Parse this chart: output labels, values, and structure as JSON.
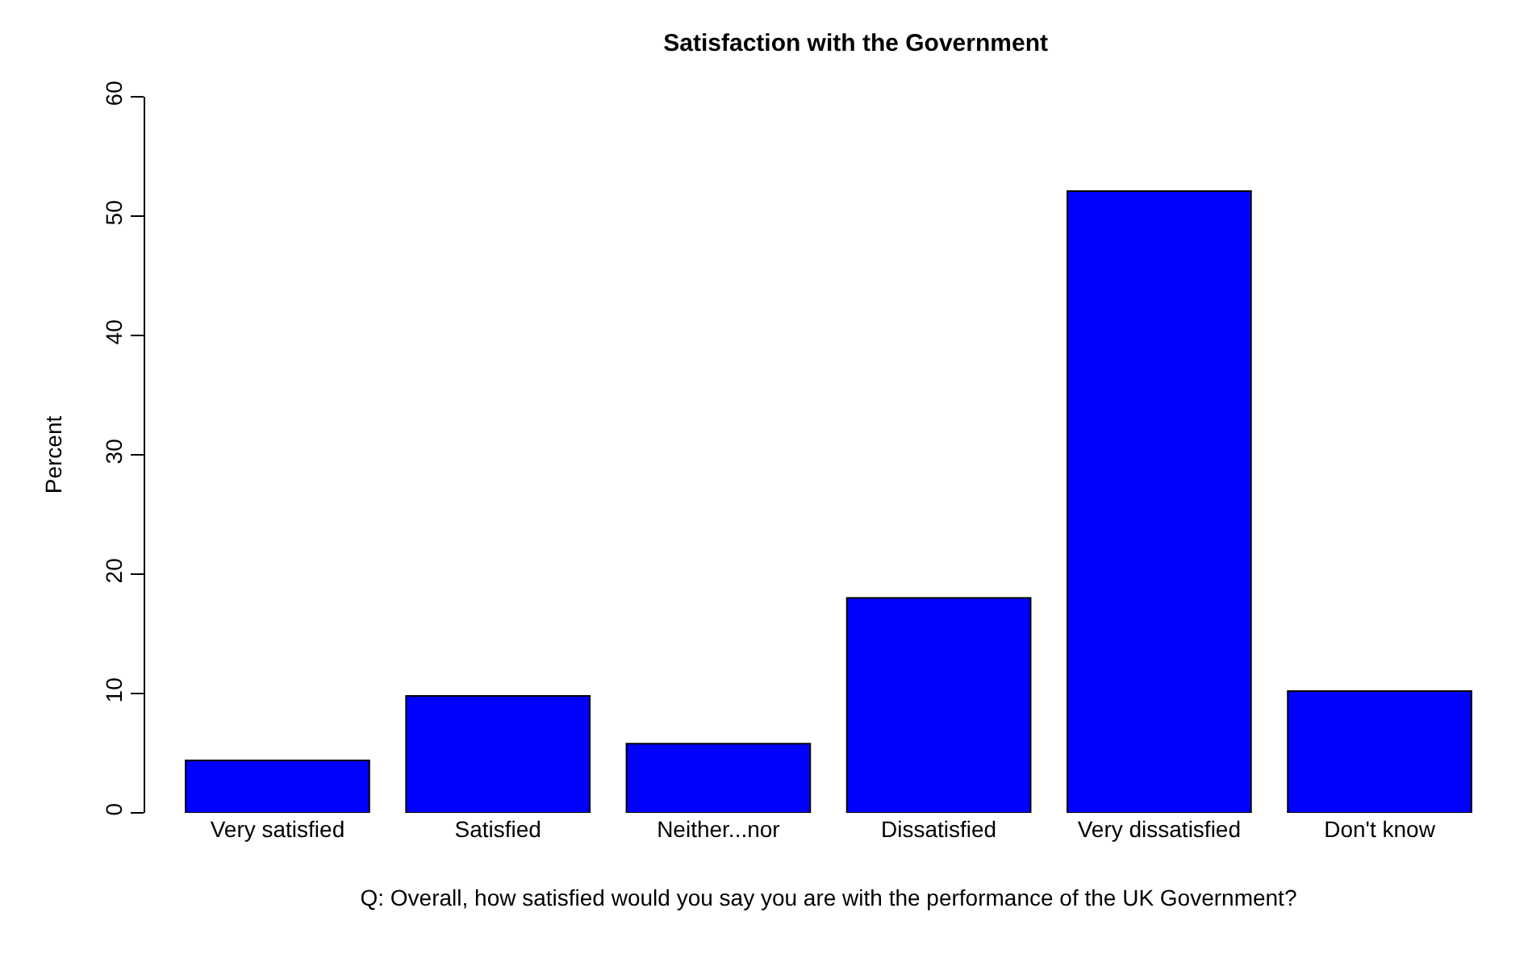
{
  "chart_data": {
    "type": "bar",
    "title": "Satisfaction with the Government",
    "xlabel": "Q: Overall, how satisfied would you say you are with the performance of the UK Government?",
    "ylabel": "Percent",
    "categories": [
      "Very satisfied",
      "Satisfied",
      "Neither...nor",
      "Dissatisfied",
      "Very dissatisfied",
      "Don't know"
    ],
    "values": [
      4.4,
      9.8,
      5.8,
      18.0,
      52.1,
      10.2
    ],
    "color": "#0000ff",
    "ylim": [
      0,
      60
    ],
    "yticks": [
      0,
      10,
      20,
      30,
      40,
      50,
      60
    ],
    "grid": false,
    "legend": false
  }
}
